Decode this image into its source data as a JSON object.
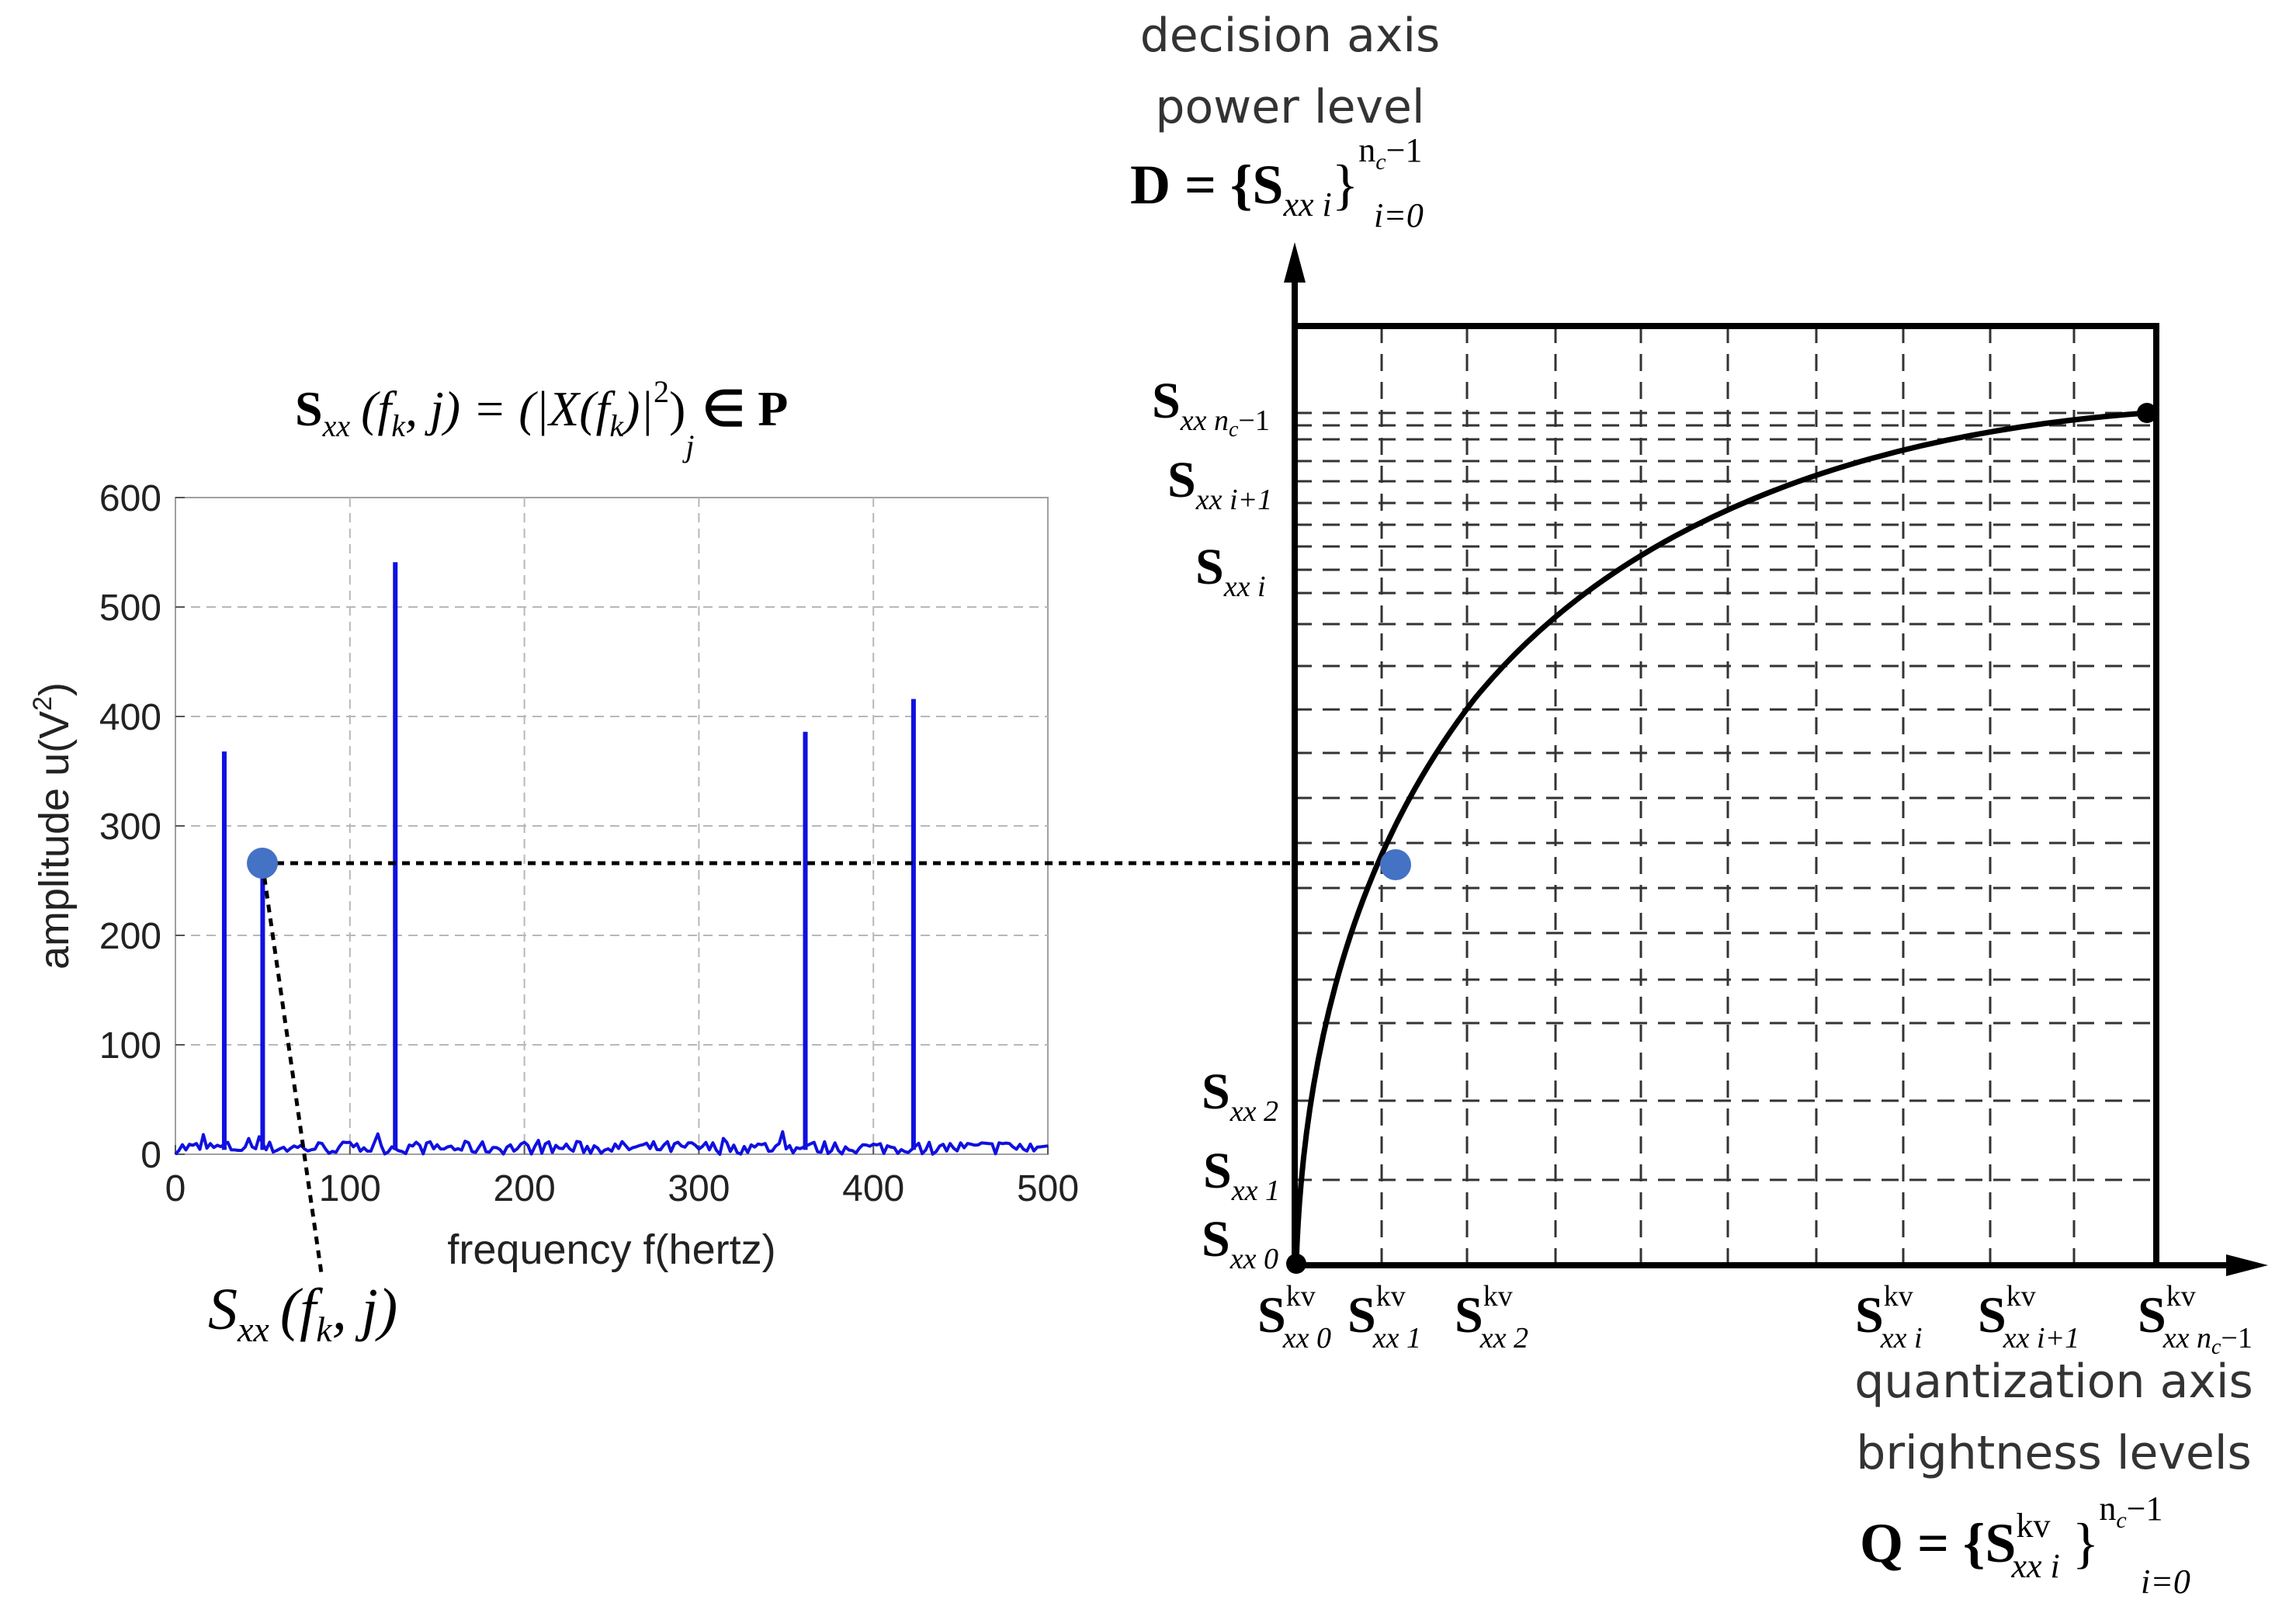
{
  "left_chart": {
    "formula": {
      "lhs": "S",
      "lhs_sub": "xx",
      "lhs_args": "(f",
      "lhs_args_sub": "k",
      "lhs_args_end": ", j) = (|X(f",
      "rhs_sub": "k",
      "rhs_end": ")|",
      "rhs_sup": "2",
      "rhs_close": ")",
      "rhs_close_sub": "j",
      "rhs_in": "∈ P"
    },
    "point_label": {
      "main": "S",
      "sub": "xx",
      "args": "(f",
      "args_sub": "k",
      "args_end": ", j)"
    }
  },
  "right_diagram": {
    "vertical_caption_1": "decision axis",
    "vertical_caption_2": "power level",
    "d_formula": {
      "lhs": "D = {S",
      "sub": "xx i",
      "close": "}",
      "sup": "n",
      "sup_sub": "c",
      "sup_end": "−1",
      "low": "i=0"
    },
    "y_labels": [
      {
        "main": "S",
        "sub": "xx n",
        "sub2": "c",
        "sub_end": "−1"
      },
      {
        "main": "S",
        "sub": "xx i+1",
        "sub2": "",
        "sub_end": ""
      },
      {
        "main": "S",
        "sub": "xx  i",
        "sub2": "",
        "sub_end": ""
      },
      {
        "main": "S",
        "sub": "xx 2",
        "sub2": "",
        "sub_end": ""
      },
      {
        "main": "S",
        "sub": "xx 1",
        "sub2": "",
        "sub_end": ""
      },
      {
        "main": "S",
        "sub": "xx 0",
        "sub2": "",
        "sub_end": ""
      }
    ],
    "x_labels": [
      {
        "main": "S",
        "sup": "kv",
        "sub": "xx 0"
      },
      {
        "main": "S",
        "sup": "kv",
        "sub": "xx 1"
      },
      {
        "main": "S",
        "sup": "kv",
        "sub": "xx 2"
      },
      {
        "main": "S",
        "sup": "kv",
        "sub": "xx i"
      },
      {
        "main": "S",
        "sup": "kv",
        "sub": "xx i+1"
      },
      {
        "main": "S",
        "sup": "kv",
        "sub": "xx n"
      }
    ],
    "x_last_sub2": "c",
    "x_last_end": "−1",
    "horizontal_caption_1": "quantization axis",
    "horizontal_caption_2": "brightness levels",
    "q_formula": {
      "lhs": "Q = {S",
      "sup": "kv",
      "sub": "xx i",
      "close": "}",
      "top": "n",
      "top_sub": "c",
      "top_end": "−1",
      "low": "i=0"
    }
  },
  "colors": {
    "spectrum": "#1010e0",
    "marker": "#4472c4",
    "ink": "#000000",
    "grid": "#b8b8b8"
  },
  "chart_data": {
    "type": "line",
    "title": "",
    "xlabel": "frequency f(hertz)",
    "ylabel": "amplitude u(V",
    "ylabel_sup": "2",
    "ylabel_end": ")",
    "xlim": [
      0,
      500
    ],
    "ylim": [
      0,
      600
    ],
    "x_ticks": [
      "0",
      "100",
      "200",
      "300",
      "400",
      "500"
    ],
    "y_ticks": [
      "0",
      "100",
      "200",
      "300",
      "400",
      "500",
      "600"
    ],
    "grid": true,
    "peaks": [
      {
        "x": 28,
        "y": 368
      },
      {
        "x": 50,
        "y": 265
      },
      {
        "x": 126,
        "y": 541
      },
      {
        "x": 361,
        "y": 386
      },
      {
        "x": 423,
        "y": 416
      }
    ],
    "noise_level": 12,
    "highlight_point": {
      "x": 50,
      "y": 265
    }
  }
}
